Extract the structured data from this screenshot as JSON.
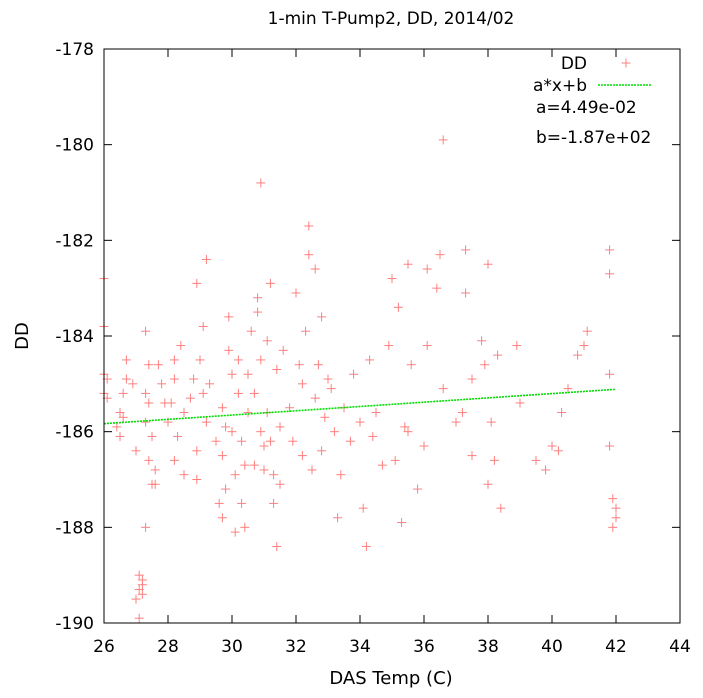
{
  "chart_data": {
    "type": "scatter",
    "title": "1-min T-Pump2, DD, 2014/02",
    "xlabel": "DAS Temp (C)",
    "ylabel": "DD",
    "xlim": [
      26,
      44
    ],
    "ylim": [
      -190,
      -178
    ],
    "xticks": [
      "26",
      "28",
      "30",
      "32",
      "34",
      "36",
      "38",
      "40",
      "42",
      "44"
    ],
    "yticks": [
      "-190",
      "-188",
      "-186",
      "-184",
      "-182",
      "-180",
      "-178"
    ],
    "grid": false,
    "legend_position": "top-right",
    "series": [
      {
        "name": "DD",
        "color": "#ff7f7f",
        "marker": "plus",
        "points": [
          [
            26.0,
            -182.8
          ],
          [
            26.0,
            -183.8
          ],
          [
            26.0,
            -184.8
          ],
          [
            26.0,
            -185.2
          ],
          [
            26.1,
            -184.9
          ],
          [
            26.1,
            -185.3
          ],
          [
            26.4,
            -185.9
          ],
          [
            26.5,
            -185.6
          ],
          [
            26.5,
            -186.1
          ],
          [
            26.6,
            -185.2
          ],
          [
            26.6,
            -185.7
          ],
          [
            26.7,
            -184.5
          ],
          [
            26.7,
            -184.9
          ],
          [
            26.9,
            -185.0
          ],
          [
            27.0,
            -186.4
          ],
          [
            27.0,
            -189.5
          ],
          [
            27.1,
            -189.0
          ],
          [
            27.1,
            -189.3
          ],
          [
            27.1,
            -189.9
          ],
          [
            27.2,
            -189.1
          ],
          [
            27.2,
            -189.2
          ],
          [
            27.2,
            -189.4
          ],
          [
            27.3,
            -185.2
          ],
          [
            27.3,
            -185.8
          ],
          [
            27.3,
            -188.0
          ],
          [
            27.3,
            -183.9
          ],
          [
            27.4,
            -184.6
          ],
          [
            27.4,
            -185.4
          ],
          [
            27.4,
            -186.6
          ],
          [
            27.5,
            -186.1
          ],
          [
            27.5,
            -187.1
          ],
          [
            27.6,
            -187.1
          ],
          [
            27.6,
            -186.8
          ],
          [
            27.7,
            -184.6
          ],
          [
            27.8,
            -185.0
          ],
          [
            27.9,
            -185.4
          ],
          [
            28.0,
            -185.8
          ],
          [
            28.1,
            -185.4
          ],
          [
            28.2,
            -184.5
          ],
          [
            28.2,
            -184.9
          ],
          [
            28.2,
            -186.6
          ],
          [
            28.3,
            -186.1
          ],
          [
            28.4,
            -184.2
          ],
          [
            28.5,
            -186.9
          ],
          [
            28.5,
            -185.6
          ],
          [
            28.7,
            -185.3
          ],
          [
            28.8,
            -184.9
          ],
          [
            28.9,
            -182.9
          ],
          [
            28.9,
            -186.4
          ],
          [
            28.9,
            -187.0
          ],
          [
            29.0,
            -184.5
          ],
          [
            29.1,
            -183.8
          ],
          [
            29.1,
            -185.2
          ],
          [
            29.2,
            -182.4
          ],
          [
            29.2,
            -185.8
          ],
          [
            29.3,
            -185.0
          ],
          [
            29.5,
            -186.2
          ],
          [
            29.6,
            -187.5
          ],
          [
            29.7,
            -187.8
          ],
          [
            29.7,
            -185.5
          ],
          [
            29.7,
            -186.5
          ],
          [
            29.8,
            -187.2
          ],
          [
            29.8,
            -185.9
          ],
          [
            29.9,
            -184.3
          ],
          [
            29.9,
            -183.6
          ],
          [
            30.0,
            -184.8
          ],
          [
            30.0,
            -186.0
          ],
          [
            30.1,
            -188.1
          ],
          [
            30.1,
            -186.9
          ],
          [
            30.2,
            -184.5
          ],
          [
            30.2,
            -185.2
          ],
          [
            30.3,
            -186.2
          ],
          [
            30.3,
            -187.5
          ],
          [
            30.4,
            -186.7
          ],
          [
            30.4,
            -188.0
          ],
          [
            30.5,
            -185.6
          ],
          [
            30.5,
            -184.8
          ],
          [
            30.6,
            -183.9
          ],
          [
            30.7,
            -186.7
          ],
          [
            30.7,
            -185.2
          ],
          [
            30.8,
            -183.2
          ],
          [
            30.8,
            -183.5
          ],
          [
            30.9,
            -180.8
          ],
          [
            30.9,
            -184.5
          ],
          [
            30.9,
            -186.0
          ],
          [
            31.0,
            -186.3
          ],
          [
            31.0,
            -186.8
          ],
          [
            31.1,
            -185.6
          ],
          [
            31.1,
            -184.1
          ],
          [
            31.2,
            -182.9
          ],
          [
            31.2,
            -186.2
          ],
          [
            31.3,
            -187.5
          ],
          [
            31.3,
            -186.9
          ],
          [
            31.4,
            -184.7
          ],
          [
            31.4,
            -188.4
          ],
          [
            31.5,
            -187.1
          ],
          [
            31.5,
            -185.9
          ],
          [
            31.6,
            -184.3
          ],
          [
            31.8,
            -185.5
          ],
          [
            31.9,
            -186.2
          ],
          [
            32.0,
            -183.1
          ],
          [
            32.1,
            -184.6
          ],
          [
            32.2,
            -186.5
          ],
          [
            32.2,
            -185.0
          ],
          [
            32.3,
            -183.9
          ],
          [
            32.4,
            -181.7
          ],
          [
            32.4,
            -182.3
          ],
          [
            32.5,
            -186.8
          ],
          [
            32.6,
            -182.6
          ],
          [
            32.6,
            -185.3
          ],
          [
            32.7,
            -184.6
          ],
          [
            32.8,
            -183.6
          ],
          [
            32.8,
            -186.4
          ],
          [
            32.9,
            -185.7
          ],
          [
            33.0,
            -184.9
          ],
          [
            33.1,
            -185.1
          ],
          [
            33.2,
            -186.0
          ],
          [
            33.3,
            -187.8
          ],
          [
            33.4,
            -186.9
          ],
          [
            33.5,
            -185.5
          ],
          [
            33.7,
            -186.2
          ],
          [
            33.8,
            -184.8
          ],
          [
            34.0,
            -185.8
          ],
          [
            34.1,
            -187.6
          ],
          [
            34.2,
            -188.4
          ],
          [
            34.3,
            -184.5
          ],
          [
            34.4,
            -186.1
          ],
          [
            34.5,
            -185.6
          ],
          [
            34.7,
            -186.7
          ],
          [
            34.9,
            -184.2
          ],
          [
            35.0,
            -182.8
          ],
          [
            35.1,
            -186.6
          ],
          [
            35.2,
            -183.4
          ],
          [
            35.3,
            -187.9
          ],
          [
            35.4,
            -185.9
          ],
          [
            35.5,
            -182.5
          ],
          [
            35.5,
            -186.0
          ],
          [
            35.6,
            -184.6
          ],
          [
            35.8,
            -187.2
          ],
          [
            36.0,
            -186.3
          ],
          [
            36.1,
            -182.6
          ],
          [
            36.1,
            -184.2
          ],
          [
            36.4,
            -183.0
          ],
          [
            36.5,
            -182.3
          ],
          [
            36.6,
            -179.9
          ],
          [
            36.6,
            -185.1
          ],
          [
            37.0,
            -185.8
          ],
          [
            37.2,
            -185.6
          ],
          [
            37.3,
            -182.2
          ],
          [
            37.3,
            -183.1
          ],
          [
            37.5,
            -184.9
          ],
          [
            37.5,
            -186.5
          ],
          [
            37.8,
            -184.1
          ],
          [
            37.9,
            -184.6
          ],
          [
            38.0,
            -182.5
          ],
          [
            38.0,
            -187.1
          ],
          [
            38.1,
            -185.8
          ],
          [
            38.2,
            -186.6
          ],
          [
            38.3,
            -184.4
          ],
          [
            38.4,
            -187.6
          ],
          [
            38.9,
            -184.2
          ],
          [
            39.0,
            -185.4
          ],
          [
            39.5,
            -186.6
          ],
          [
            39.8,
            -186.8
          ],
          [
            40.0,
            -186.3
          ],
          [
            40.2,
            -186.4
          ],
          [
            40.3,
            -185.6
          ],
          [
            40.5,
            -185.1
          ],
          [
            40.8,
            -184.4
          ],
          [
            41.0,
            -184.2
          ],
          [
            41.1,
            -183.9
          ],
          [
            41.8,
            -182.2
          ],
          [
            41.8,
            -182.7
          ],
          [
            41.8,
            -184.8
          ],
          [
            41.8,
            -186.3
          ],
          [
            41.9,
            -187.4
          ],
          [
            41.9,
            -188.0
          ],
          [
            42.0,
            -187.6
          ],
          [
            42.0,
            -187.8
          ]
        ]
      },
      {
        "name": "a*x+b",
        "color": "#00dd00",
        "style": "dotted-line",
        "a": 0.0449,
        "b": -187.0,
        "x_range": [
          26,
          42
        ]
      }
    ],
    "annotations": [
      "a=4.49e-02",
      "b=-1.87e+02"
    ]
  }
}
